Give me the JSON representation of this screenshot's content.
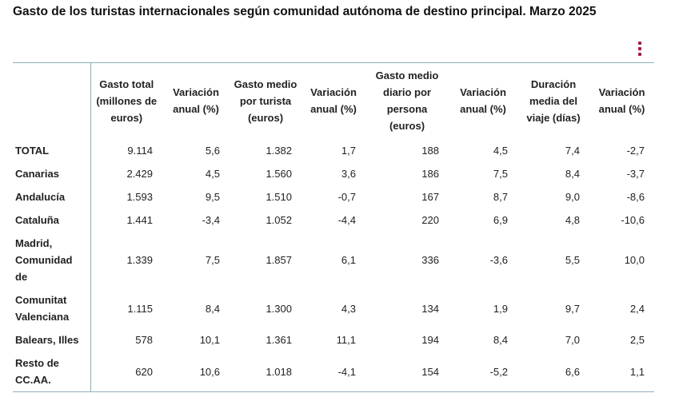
{
  "title": "Gasto de los turistas internacionales según comunidad autónoma de destino principal. Marzo 2025",
  "menu_icon": "vertical-dots-icon",
  "accent_color": "#b3133f",
  "table": {
    "headers": [
      "",
      "Gasto total (millones de euros)",
      "Variación anual (%)",
      "Gasto medio por turista (euros)",
      "Variación anual (%)",
      "Gasto medio diario por persona (euros)",
      "Variación anual (%)",
      "Duración media del viaje (días)",
      "Variación anual (%)"
    ],
    "rows": [
      [
        "TOTAL",
        "9.114",
        "5,6",
        "1.382",
        "1,7",
        "188",
        "4,5",
        "7,4",
        "-2,7"
      ],
      [
        "Canarias",
        "2.429",
        "4,5",
        "1.560",
        "3,6",
        "186",
        "7,5",
        "8,4",
        "-3,7"
      ],
      [
        "Andalucía",
        "1.593",
        "9,5",
        "1.510",
        "-0,7",
        "167",
        "8,7",
        "9,0",
        "-8,6"
      ],
      [
        "Cataluña",
        "1.441",
        "-3,4",
        "1.052",
        "-4,4",
        "220",
        "6,9",
        "4,8",
        "-10,6"
      ],
      [
        "Madrid, Comunidad de",
        "1.339",
        "7,5",
        "1.857",
        "6,1",
        "336",
        "-3,6",
        "5,5",
        "10,0"
      ],
      [
        "Comunitat Valenciana",
        "1.115",
        "8,4",
        "1.300",
        "4,3",
        "134",
        "1,9",
        "9,7",
        "2,4"
      ],
      [
        "Balears, Illes",
        "578",
        "10,1",
        "1.361",
        "11,1",
        "194",
        "8,4",
        "7,0",
        "2,5"
      ],
      [
        "Resto de CC.AA.",
        "620",
        "10,6",
        "1.018",
        "-4,1",
        "154",
        "-5,2",
        "6,6",
        "1,1"
      ]
    ]
  }
}
